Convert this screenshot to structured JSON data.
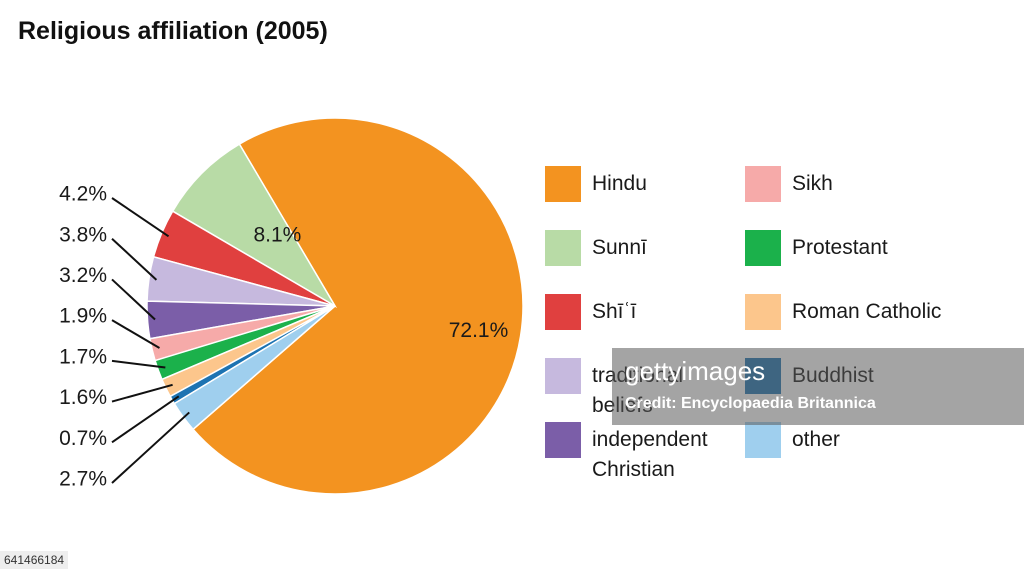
{
  "chart_data": {
    "type": "pie",
    "title": "Religious affiliation (2005)",
    "series": [
      {
        "name": "Hindu",
        "color": "#f39320",
        "values": [
          72.1
        ],
        "value_labels": [
          "72.1%"
        ]
      },
      {
        "name": "Sunnī",
        "color": "#b8dba6",
        "values": [
          8.1
        ],
        "value_labels": [
          "8.1%"
        ]
      },
      {
        "name": "Shīʿī",
        "color": "#e0403f",
        "values": [
          4.2
        ],
        "value_labels": [
          "4.2%"
        ]
      },
      {
        "name": "traditional beliefs",
        "color": "#c6b9de",
        "values": [
          3.8
        ],
        "value_labels": [
          "3.8%"
        ]
      },
      {
        "name": "independent Christian",
        "color": "#7b5ea8",
        "values": [
          3.2
        ],
        "value_labels": [
          "3.2%"
        ]
      },
      {
        "name": "Sikh",
        "color": "#f6aaa9",
        "values": [
          1.9
        ],
        "value_labels": [
          "1.9%"
        ]
      },
      {
        "name": "Protestant",
        "color": "#1bb14b",
        "values": [
          1.7
        ],
        "value_labels": [
          "1.7%"
        ]
      },
      {
        "name": "Roman Catholic",
        "color": "#fcc68c",
        "values": [
          1.6
        ],
        "value_labels": [
          "1.6%"
        ]
      },
      {
        "name": "Buddhist",
        "color": "#1d73b2",
        "values": [
          0.7
        ],
        "value_labels": [
          "0.7%"
        ]
      },
      {
        "name": "other",
        "color": "#9fcfee",
        "values": [
          2.7
        ],
        "value_labels": [
          "2.7%"
        ]
      }
    ]
  },
  "watermark": {
    "brand": "gettyimages",
    "credit": "Credit: Encyclopaedia Britannica",
    "id": "641466184"
  }
}
